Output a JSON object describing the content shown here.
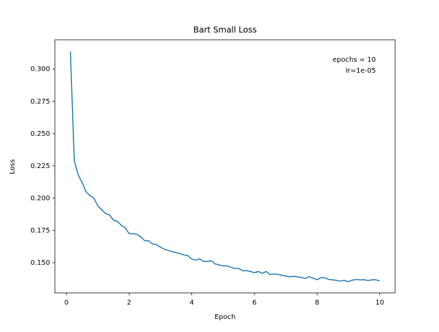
{
  "chart_data": {
    "type": "line",
    "title": "Bart Small Loss",
    "xlabel": "Epoch",
    "ylabel": "Loss",
    "annotations": [
      "epochs = 10",
      "lr=1e-05"
    ],
    "x": [
      0.125,
      0.25,
      0.375,
      0.5,
      0.625,
      0.75,
      0.875,
      1.0,
      1.125,
      1.25,
      1.375,
      1.5,
      1.625,
      1.75,
      1.875,
      2.0,
      2.125,
      2.25,
      2.375,
      2.5,
      2.625,
      2.75,
      2.875,
      3.0,
      3.125,
      3.25,
      3.375,
      3.5,
      3.625,
      3.75,
      3.875,
      4.0,
      4.125,
      4.25,
      4.375,
      4.5,
      4.625,
      4.75,
      4.875,
      5.0,
      5.125,
      5.25,
      5.375,
      5.5,
      5.625,
      5.75,
      5.875,
      6.0,
      6.125,
      6.25,
      6.375,
      6.5,
      6.625,
      6.75,
      6.875,
      7.0,
      7.125,
      7.25,
      7.375,
      7.5,
      7.625,
      7.75,
      7.875,
      8.0,
      8.125,
      8.25,
      8.375,
      8.5,
      8.625,
      8.75,
      8.875,
      9.0,
      9.125,
      9.25,
      9.375,
      9.5,
      9.625,
      9.75,
      9.875,
      10.0
    ],
    "series": [
      {
        "name": "loss",
        "color": "#1f77b4",
        "values": [
          0.3135,
          0.229,
          0.218,
          0.212,
          0.205,
          0.202,
          0.2,
          0.194,
          0.191,
          0.188,
          0.187,
          0.183,
          0.182,
          0.179,
          0.177,
          0.1725,
          0.1725,
          0.172,
          0.17,
          0.167,
          0.167,
          0.1645,
          0.164,
          0.162,
          0.1605,
          0.1595,
          0.1585,
          0.1578,
          0.157,
          0.156,
          0.1555,
          0.1528,
          0.152,
          0.153,
          0.151,
          0.151,
          0.1515,
          0.149,
          0.1483,
          0.1475,
          0.1475,
          0.1465,
          0.1455,
          0.1455,
          0.1438,
          0.1438,
          0.1432,
          0.1422,
          0.1432,
          0.1418,
          0.1432,
          0.1408,
          0.1413,
          0.141,
          0.1403,
          0.1397,
          0.139,
          0.1395,
          0.139,
          0.1385,
          0.1378,
          0.1392,
          0.138,
          0.1368,
          0.1385,
          0.1383,
          0.137,
          0.1367,
          0.1363,
          0.1358,
          0.1363,
          0.1352,
          0.1365,
          0.137,
          0.1367,
          0.1368,
          0.1362,
          0.1367,
          0.1368,
          0.1358
        ]
      }
    ],
    "xlim": [
      -0.37,
      10.49
    ],
    "xticks": [
      0,
      2,
      4,
      6,
      8,
      10
    ],
    "ylim": [
      0.1266,
      0.3227
    ],
    "yticks": [
      {
        "value": 0.15,
        "label": "0.150"
      },
      {
        "value": 0.175,
        "label": "0.175"
      },
      {
        "value": 0.2,
        "label": "0.200"
      },
      {
        "value": 0.225,
        "label": "0.225"
      },
      {
        "value": 0.25,
        "label": "0.250"
      },
      {
        "value": 0.275,
        "label": "0.275"
      },
      {
        "value": 0.3,
        "label": "0.300"
      }
    ],
    "grid": false
  }
}
